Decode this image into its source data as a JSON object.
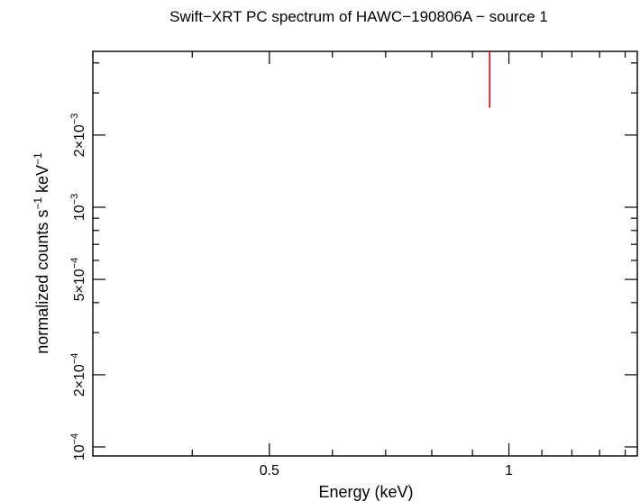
{
  "chart_data": {
    "type": "scatter",
    "title": "Swift−XRT PC spectrum of HAWC−190806A − source 1",
    "xlabel": "Energy (keV)",
    "ylabel_parts": {
      "base": "normalized counts s",
      "exp1": "−1",
      "mid": " keV",
      "exp2": "−1"
    },
    "xscale": "log",
    "yscale": "log",
    "xlim": [
      0.3,
      1.45
    ],
    "ylim": [
      9.17e-05,
      0.00447
    ],
    "x_ticks": [
      {
        "value": 0.5,
        "label": "0.5"
      },
      {
        "value": 1.0,
        "label": "1"
      }
    ],
    "y_ticks": [
      {
        "value": 0.0001,
        "base": "10",
        "exp": "−4"
      },
      {
        "value": 0.0002,
        "base": "2×10",
        "exp": "−4"
      },
      {
        "value": 0.0005,
        "base": "5×10",
        "exp": "−4"
      },
      {
        "value": 0.001,
        "base": "10",
        "exp": "−3"
      },
      {
        "value": 0.002,
        "base": "2×10",
        "exp": "−3"
      }
    ],
    "grid": false,
    "series": [
      {
        "color": "#d00000",
        "points": [
          {
            "x": 0.946,
            "y": 0.00447,
            "y_low": 0.0026,
            "y_high": 0.00447
          }
        ]
      }
    ]
  }
}
